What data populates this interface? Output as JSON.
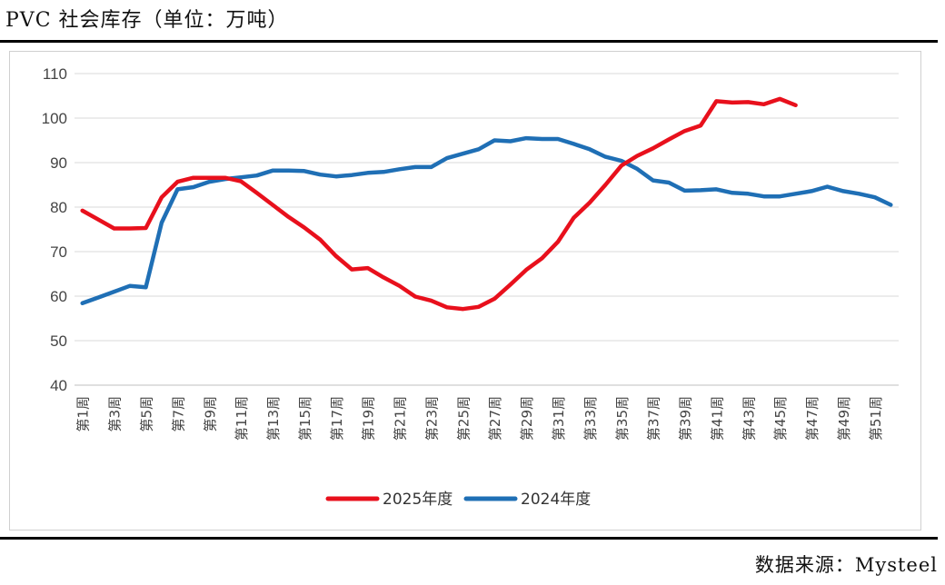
{
  "header": {
    "title": "PVC 社会库存（单位：万吨）"
  },
  "footer": {
    "source": "数据来源：Mysteel"
  },
  "colors": {
    "series_2025": "#e8101c",
    "series_2024": "#1f6fb5",
    "grid": "#d9d9d9"
  },
  "chart_data": {
    "type": "line",
    "title": "PVC 社会库存（单位：万吨）",
    "xlabel": "",
    "ylabel": "",
    "ylim": [
      40,
      110
    ],
    "yticks": [
      40,
      50,
      60,
      70,
      80,
      90,
      100,
      110
    ],
    "grid": true,
    "legend_position": "bottom-center",
    "x_tick_labels": [
      "第1周",
      "第3周",
      "第5周",
      "第7周",
      "第9周",
      "第11周",
      "第13周",
      "第15周",
      "第17周",
      "第19周",
      "第21周",
      "第23周",
      "第25周",
      "第27周",
      "第29周",
      "第31周",
      "第33周",
      "第35周",
      "第37周",
      "第39周",
      "第41周",
      "第43周",
      "第45周",
      "第47周",
      "第49周",
      "第51周"
    ],
    "x_count": 52,
    "series": [
      {
        "name": "2025年度",
        "color": "#e8101c",
        "values": [
          79.2,
          77.2,
          75.2,
          75.2,
          75.3,
          82.2,
          85.7,
          86.6,
          86.6,
          86.6,
          85.8,
          83.2,
          80.5,
          77.8,
          75.4,
          72.7,
          69.0,
          66.0,
          66.3,
          64.2,
          62.3,
          59.9,
          59.0,
          57.5,
          57.1,
          57.6,
          59.4,
          62.6,
          65.9,
          68.5,
          72.2,
          77.6,
          81.0,
          85.0,
          89.3,
          91.5,
          93.2,
          95.2,
          97.1,
          98.3,
          103.8,
          103.5,
          103.6,
          103.1,
          104.3,
          102.9
        ]
      },
      {
        "name": "2024年度",
        "color": "#1f6fb5",
        "values": [
          58.4,
          59.7,
          61.0,
          62.3,
          62.0,
          76.5,
          84.0,
          84.5,
          85.7,
          86.3,
          86.7,
          87.1,
          88.2,
          88.2,
          88.1,
          87.3,
          86.9,
          87.2,
          87.7,
          87.9,
          88.5,
          89.0,
          89.0,
          91.0,
          92.0,
          93.0,
          95.0,
          94.8,
          95.5,
          95.3,
          95.3,
          94.2,
          93.0,
          91.3,
          90.4,
          88.6,
          86.0,
          85.5,
          83.7,
          83.8,
          84.0,
          83.2,
          83.0,
          82.4,
          82.4,
          83.0,
          83.6,
          84.6,
          83.6,
          83.0,
          82.2,
          80.5
        ]
      }
    ]
  }
}
